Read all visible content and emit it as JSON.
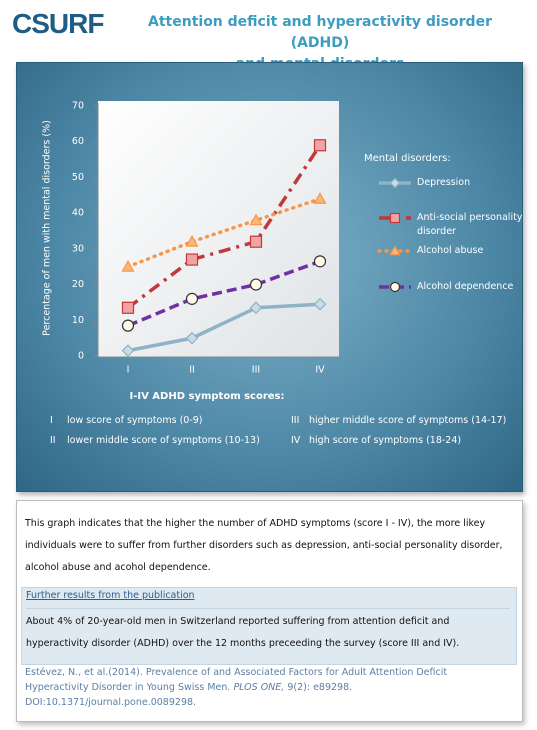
{
  "header": {
    "logo": "CSURF",
    "title_line1": "Attention deficit and hyperactivity disorder (ADHD)",
    "title_line2": "and mental disorders"
  },
  "chart_data": {
    "type": "line",
    "y_label": "Percentage of men with mental disorders (%)",
    "x_label": "I-IV ADHD symptom scores:",
    "legend_title": "Mental disorders:",
    "legend_position": "right",
    "grid": false,
    "categories": [
      "I",
      "II",
      "III",
      "IV"
    ],
    "ylim": [
      0,
      70
    ],
    "yticks": [
      0,
      10,
      20,
      30,
      40,
      50,
      60,
      70
    ],
    "series": [
      {
        "name": "Depression",
        "color": "#8fb3c6",
        "marker": "diamond",
        "marker_fill": "#c9dde8",
        "dash": "solid",
        "values": [
          1.5,
          5,
          13.5,
          14.5
        ]
      },
      {
        "name": "Anti-social personality disorder",
        "color": "#c0393b",
        "marker": "square",
        "marker_fill": "#f3a3a3",
        "dash": "dashdot",
        "values": [
          13.5,
          27,
          32,
          59
        ]
      },
      {
        "name": "Alcohol abuse",
        "color": "#f79646",
        "marker": "triangle",
        "marker_fill": "#f9b67a",
        "dash": "dot",
        "values": [
          25,
          32,
          38,
          44
        ]
      },
      {
        "name": "Alcohol dependence",
        "color": "#7030a0",
        "marker": "circle",
        "marker_fill": "#fffbe8",
        "dash": "dash",
        "values": [
          8.5,
          16,
          20,
          26.5
        ]
      }
    ]
  },
  "score_notes": [
    {
      "numeral": "I",
      "text": "low score of symptoms (0-9)"
    },
    {
      "numeral": "II",
      "text": "lower middle score of symptoms (10-13)"
    },
    {
      "numeral": "III",
      "text": "higher middle score of symptoms (14-17)"
    },
    {
      "numeral": "IV",
      "text": "high score of symptoms (18-24)"
    }
  ],
  "summary": "This graph indicates that the higher the number of ADHD symptoms (score I - IV), the more likey individuals were to suffer from further disorders such as depression, anti-social personality disorder, alcohol abuse and acohol dependence.",
  "further": {
    "heading": "Further results from the publication",
    "text": "About 4% of 20-year-old men in Switzerland reported suffering from attention deficit and hyperactivity disorder (ADHD) over the 12 months preceeding the survey (score III and IV)."
  },
  "citation": {
    "authors_title": "Estévez, N., et al.(2014). Prevalence of and Associated Factors for Adult Attention Deficit Hyperactivity Disorder in Young Swiss Men.",
    "journal": "PLOS ONE,",
    "details": "9(2): e89298. DOI:10.1371/journal.pone.0089298."
  }
}
